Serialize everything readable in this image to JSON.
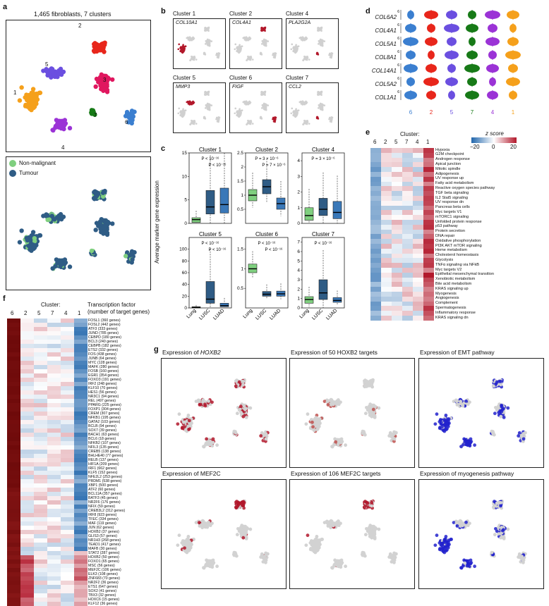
{
  "panels": {
    "a": {
      "letter": "a",
      "title": "1,465 fibroblasts, 7 clusters",
      "cluster_labels": [
        "1",
        "2",
        "3",
        "4",
        "5",
        "6",
        "7"
      ],
      "legend": [
        {
          "label": "Non-malignant",
          "color": "#7fcf7f"
        },
        {
          "label": "Tumour",
          "color": "#2f5c85"
        }
      ]
    },
    "b": {
      "letter": "b",
      "titles": [
        "Cluster 1",
        "Cluster 2",
        "Cluster 4",
        "Cluster 5",
        "Cluster 6",
        "Cluster 7"
      ],
      "genes": [
        "COL10A1",
        "COL4A1",
        "PLA2G2A",
        "MMP3",
        "FIGF",
        "CCL2"
      ]
    },
    "c": {
      "letter": "c",
      "titles": [
        "Cluster 1",
        "Cluster 2",
        "Cluster 4",
        "Cluster 5",
        "Cluster 6",
        "Cluster 7"
      ],
      "ylabel": "Average marker gene expression",
      "xcats": [
        "Lung",
        "LUSC",
        "LUAD"
      ],
      "pvals_top": [
        [
          "P < 10⁻¹⁶",
          "P < 10⁻¹⁶"
        ],
        [
          "P = 3 × 10⁻⁶",
          "P = 7 × 10⁻⁶"
        ],
        [
          "P = 3 × 10⁻⁶"
        ],
        [
          "P < 10⁻¹⁶",
          "P < 10⁻¹⁶"
        ],
        [
          "P < 10⁻¹⁶",
          "P < 10⁻¹⁶"
        ],
        [
          "P < 10⁻¹⁶"
        ]
      ]
    },
    "d": {
      "letter": "d",
      "genes": [
        "COL6A2",
        "COL4A1",
        "COL5A1",
        "COL8A1",
        "COL14A1",
        "COL5A2",
        "COL1A1"
      ],
      "clusters": [
        "6",
        "2",
        "5",
        "7",
        "4",
        "1"
      ],
      "colors": [
        "#3b7fd0",
        "#e8261b",
        "#6b4fe0",
        "#177a17",
        "#9b33d6",
        "#f5a01b"
      ],
      "ytick": "6"
    },
    "e": {
      "letter": "e",
      "cluster_header": "Cluster:",
      "clusters": [
        "6",
        "2",
        "5",
        "7",
        "4",
        "1"
      ],
      "zscore_label": "z score",
      "zscore_ticks": [
        "−20",
        "0",
        "20"
      ],
      "pathways": [
        "Hypoxia",
        "G2M checkpoint",
        "Androgen response",
        "Apical junction",
        "Mitotic spindle",
        "Adipogenesis",
        "UV response up",
        "Fatty acid metabolism",
        "Reactive oxygen species pathway",
        "TGF beta signaling",
        "IL2 Stat5 signaling",
        "UV response dn",
        "Pancreas beta cells",
        "Myc targets V1",
        "mTORC1 signaling",
        "Unfolded protein response",
        "p53 pathway",
        "Protein secretion",
        "DNA repair",
        "Oxidative phosphorylation",
        "PI3K AKT mTOR signaling",
        "Heme metabolism",
        "Cholesterol homeostasis",
        "Glycolysis",
        "TNFα signaling via NFkB",
        "Myc targets V2",
        "Epithelial mesenchymal transition",
        "Xenobiotic metabolism",
        "Bile acid metabolism",
        "KRAS signaling up",
        "Myogenesis",
        "Angiogenesis",
        "Complement",
        "Spermatogenesis",
        "Inflammatory response",
        "KRAS signaling dn"
      ]
    },
    "f": {
      "letter": "f",
      "cluster_header": "Cluster:",
      "clusters": [
        "6",
        "2",
        "5",
        "7",
        "4",
        "1"
      ],
      "tf_header_1": "Transcription factor",
      "tf_header_2": "(number of target genes)",
      "factors": [
        "FOSL1 (360 genes)",
        "FOSL2 (442 genes)",
        "ATF3 (333 genes)",
        "JUND (785 genes)",
        "CEBPD (180 genes)",
        "BCL3 (240 genes)",
        "CEBPB (182 genes)",
        "ETS2 (332 genes)",
        "FOS (438 genes)",
        "JUNB (64 genes)",
        "MYC (128 genes)",
        "MAFK (280 genes)",
        "FOSB (160 genes)",
        "EGR1 (354 genes)",
        "FOXO3 (191 genes)",
        "IRF2 (248 genes)",
        "KLF10 (70 genes)",
        "HES1 (56 genes)",
        "NR3C1 (94 genes)",
        "REL (497 genes)",
        "PPARG (225 genes)",
        "FOXP1 (304 genes)",
        "CREM (307 genes)",
        "NFKB1 (195 genes)",
        "GATA2 (103 genes)",
        "BCLB (94 genes)",
        "SOX7 (39 genes)",
        "BACH1 (63 genes)",
        "BCL6 (18 genes)",
        "NFKB2 (107 genes)",
        "NFIL3 (135 genes)",
        "CREB5 (138 genes)",
        "BHLHE40 (77 genes)",
        "RELB (137 genes)",
        "HIF1A (209 genes)",
        "IRF1 (662 genes)",
        "KLF5 (152 genes)",
        "NFE2L2 (253 genes)",
        "PRDM1 (538 genes)",
        "XBP1 (500 genes)",
        "ATF2 (60 genes)",
        "BCL11A (357 genes)",
        "BATF3 (45 genes)",
        "NR2F6 (176 genes)",
        "NFIX (59 genes)",
        "CREB3L2 (312 genes)",
        "IRF8 (923 genes)",
        "TFEC (334 genes)",
        "MAF (119 genes)",
        "JUN (62 genes)",
        "HOXB2 (37 genes)",
        "GLIS3 (57 genes)",
        "NR1H3 (268 genes)",
        "TEAD1 (417 genes)",
        "MAFB (30 genes)",
        "STAT2 (287 genes)",
        "HOXB2 (50 genes)",
        "FOXO1 (65 genes)",
        "MSC (56 genes)",
        "MEF2C (106 genes)",
        "ELK3 (108 genes)",
        "ZNF683 (70 genes)",
        "NR2F2 (36 genes)",
        "ETS1 (647 genes)",
        "SOX2 (41 genes)",
        "TBX3 (32 genes)",
        "HOXC6 (15 genes)",
        "KLF12 (36 genes)"
      ]
    },
    "g": {
      "letter": "g",
      "titles": [
        [
          "Expression of ",
          "HOXB2",
          ""
        ],
        [
          "Expression of 50 HOXB2 targets",
          "",
          ""
        ],
        [
          "Expression of EMT pathway",
          "",
          ""
        ],
        [
          "Expression of MEF2C",
          "",
          ""
        ],
        [
          "Expression of 106 MEF2C targets",
          "",
          ""
        ],
        [
          "Expression of myogenesis pathway",
          "",
          ""
        ]
      ]
    }
  },
  "colors": {
    "red": "#b2182b",
    "blue": "#2166ac",
    "grey": "#c8c8c8"
  }
}
